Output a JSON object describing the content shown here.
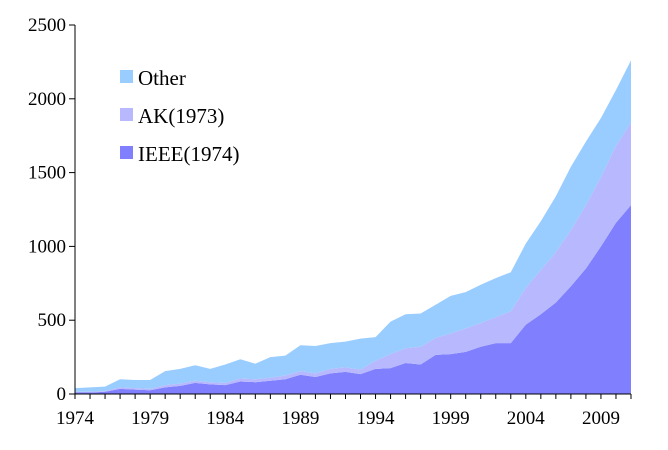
{
  "chart_data": {
    "type": "area",
    "stacked": true,
    "x": [
      1974,
      1975,
      1976,
      1977,
      1978,
      1979,
      1980,
      1981,
      1982,
      1983,
      1984,
      1985,
      1986,
      1987,
      1988,
      1989,
      1990,
      1991,
      1992,
      1993,
      1994,
      1995,
      1996,
      1997,
      1998,
      1999,
      2000,
      2001,
      2002,
      2003,
      2004,
      2005,
      2006,
      2007,
      2008,
      2009,
      2010,
      2011
    ],
    "series": [
      {
        "name": "IEEE(1974)",
        "color": "#8080ff",
        "values": [
          10,
          10,
          15,
          35,
          30,
          25,
          45,
          55,
          75,
          65,
          60,
          85,
          80,
          90,
          100,
          130,
          115,
          140,
          150,
          135,
          170,
          175,
          210,
          200,
          265,
          270,
          285,
          320,
          345,
          345,
          470,
          540,
          620,
          730,
          850,
          1000,
          1160,
          1280
        ]
      },
      {
        "name": "AK(1973)",
        "color": "#b8b8ff",
        "values": [
          5,
          5,
          5,
          10,
          10,
          10,
          15,
          15,
          15,
          15,
          15,
          20,
          20,
          20,
          25,
          25,
          25,
          30,
          30,
          30,
          55,
          95,
          100,
          120,
          115,
          140,
          160,
          160,
          175,
          215,
          250,
          300,
          340,
          380,
          430,
          470,
          520,
          560
        ]
      },
      {
        "name": "Other",
        "color": "#99ccff",
        "values": [
          25,
          30,
          30,
          55,
          55,
          60,
          95,
          100,
          105,
          90,
          125,
          130,
          105,
          140,
          135,
          175,
          185,
          175,
          175,
          210,
          160,
          220,
          230,
          225,
          225,
          255,
          245,
          260,
          265,
          265,
          300,
          330,
          380,
          430,
          430,
          400,
          380,
          420
        ]
      }
    ],
    "xticks": [
      "1974",
      "1979",
      "1984",
      "1989",
      "1994",
      "1999",
      "2004",
      "2009"
    ],
    "yticks": [
      "0",
      "500",
      "1000",
      "1500",
      "2000",
      "2500"
    ],
    "ylim": [
      0,
      2500
    ],
    "xlim": [
      1974,
      2011
    ],
    "legend_position": "upper-left",
    "grid": false
  }
}
